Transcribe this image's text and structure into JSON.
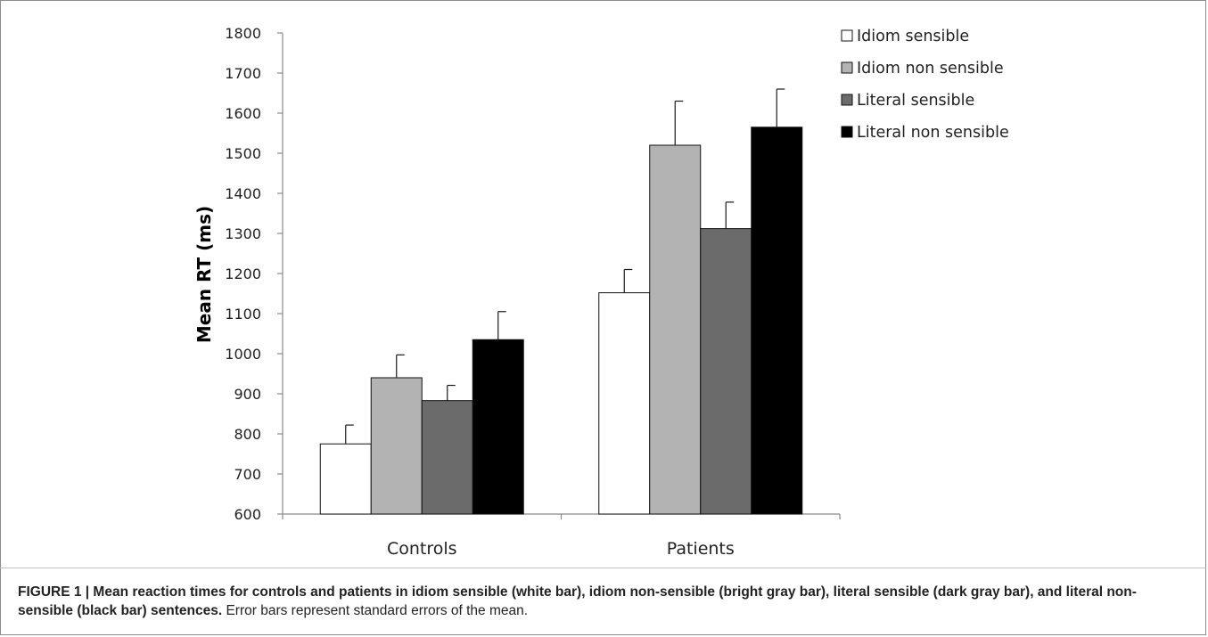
{
  "caption": {
    "title": "FIGURE 1 | Mean reaction times for controls and patients in idiom sensible (white bar), idiom non-sensible (bright gray bar), literal sensible (dark gray bar), and literal non-sensible (black bar) sentences.",
    "text": "Error bars represent standard errors of the mean."
  },
  "chart_data": {
    "type": "bar",
    "title": "",
    "xlabel": "",
    "ylabel": "Mean RT (ms)",
    "ylim": [
      600,
      1800
    ],
    "yticks": [
      600,
      700,
      800,
      900,
      1000,
      1100,
      1200,
      1300,
      1400,
      1500,
      1600,
      1700,
      1800
    ],
    "categories": [
      "Controls",
      "Patients"
    ],
    "grid": false,
    "legend_position": "top-right",
    "series": [
      {
        "name": "Idiom sensible",
        "color": "#ffffff",
        "values": [
          775,
          1152
        ],
        "errors": [
          47,
          58
        ]
      },
      {
        "name": "Idiom non sensible",
        "color": "#b3b3b3",
        "values": [
          940,
          1520
        ],
        "errors": [
          57,
          110
        ]
      },
      {
        "name": "Literal sensible",
        "color": "#6b6b6b",
        "values": [
          883,
          1312
        ],
        "errors": [
          38,
          66
        ]
      },
      {
        "name": "Literal non sensible",
        "color": "#000000",
        "values": [
          1035,
          1565
        ],
        "errors": [
          70,
          95
        ]
      }
    ]
  }
}
